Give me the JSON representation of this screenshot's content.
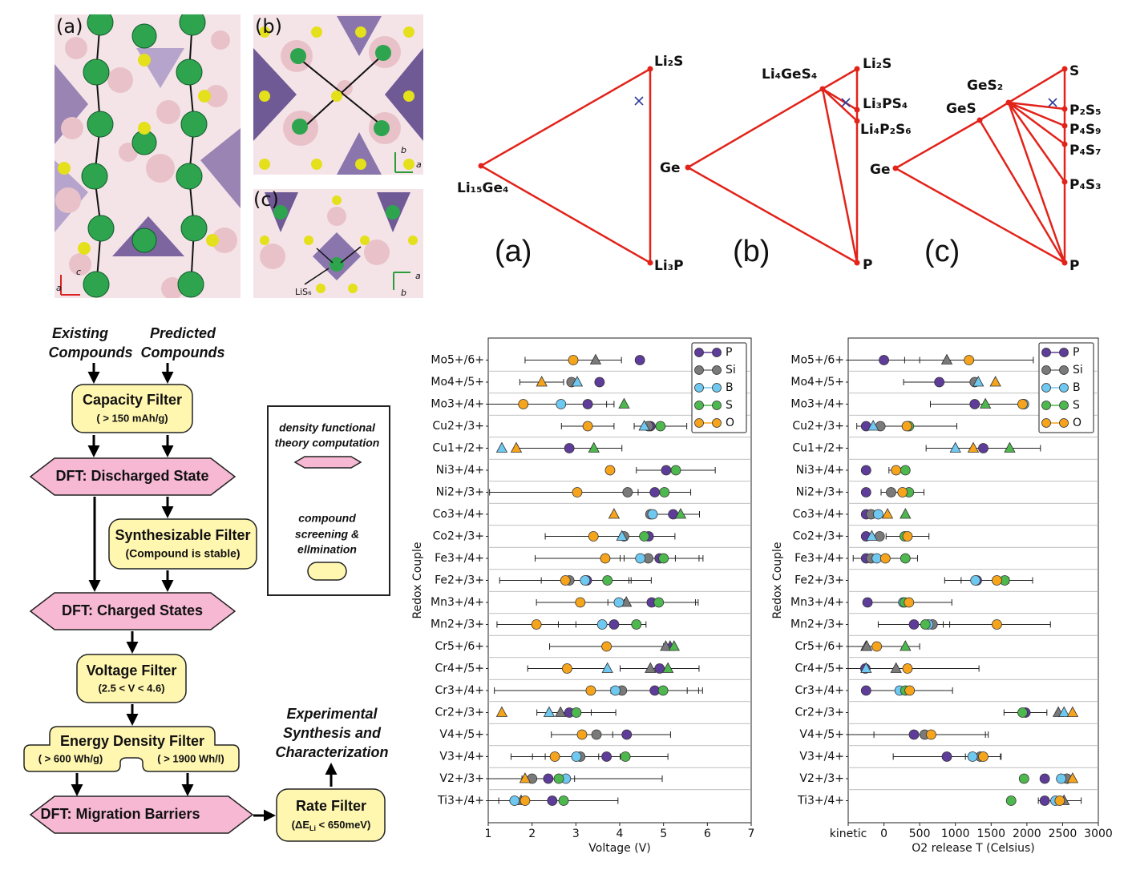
{
  "structures": {
    "panels": [
      "(a)",
      "(b)",
      "(c)"
    ],
    "label": "LiS₆",
    "axes": [
      [
        "c",
        "a"
      ],
      [
        "b",
        "a"
      ],
      [
        "a",
        "b"
      ]
    ]
  },
  "phase_diagrams": [
    {
      "label": "(a)",
      "phases": [
        "Li₂S",
        "Li₁₅Ge₄",
        "Li₃P"
      ]
    },
    {
      "label": "(b)",
      "phases": [
        "Li₄GeS₄",
        "Li₂S",
        "Li₃PS₄",
        "Li₄P₂S₆",
        "Ge",
        "P"
      ]
    },
    {
      "label": "(c)",
      "phases": [
        "S",
        "GeS₂",
        "GeS",
        "P₂S₅",
        "P₄S₉",
        "P₄S₇",
        "Ge",
        "P₄S₃",
        "P"
      ]
    }
  ],
  "flowchart": {
    "inputs": [
      [
        "Existing",
        "Compounds"
      ],
      [
        "Predicted",
        "Compounds"
      ]
    ],
    "capacity_filter": {
      "title": "Capacity Filter",
      "criterion": "( > 150 mAh/g)"
    },
    "dft_discharged": "DFT: Discharged State",
    "synthesizable_filter": {
      "title": "Synthesizable Filter",
      "criterion": "(Compound is stable)"
    },
    "dft_charged": "DFT: Charged States",
    "voltage_filter": {
      "title": "Voltage Filter",
      "criterion": "(2.5 < V < 4.6)"
    },
    "energy_density_filter": {
      "title": "Energy Density Filter",
      "criteria": [
        "( > 600 Wh/g)",
        "( > 1900 Wh/l)"
      ]
    },
    "dft_migration": "DFT: Migration Barriers",
    "rate_filter": {
      "title": "Rate Filter",
      "criterion": [
        "(ΔE",
        "Li",
        " < 650meV)"
      ]
    },
    "output": [
      "Experimental",
      "Synthesis and",
      "Characterization"
    ],
    "legend": {
      "dft": [
        "density functional",
        "theory computation"
      ],
      "screening": [
        "compound",
        "screening &",
        "ellmination"
      ]
    }
  },
  "chart_data": [
    {
      "type": "scatter",
      "xlabel": "Voltage (V)",
      "ylabel": "Redox Couple",
      "categories": [
        "Mo5+/6+",
        "Mo4+/5+",
        "Mo3+/4+",
        "Cu2+/3+",
        "Cu1+/2+",
        "Ni3+/4+",
        "Ni2+/3+",
        "Co3+/4+",
        "Co2+/3+",
        "Fe3+/4+",
        "Fe2+/3+",
        "Mn3+/4+",
        "Mn2+/3+",
        "Cr5+/6+",
        "Cr4+/5+",
        "Cr3+/4+",
        "Cr2+/3+",
        "V4+/5+",
        "V3+/4+",
        "V2+/3+",
        "Ti3+/4+"
      ],
      "xlim": [
        1,
        7
      ],
      "xticks": [
        1,
        2,
        3,
        4,
        5,
        6,
        7
      ],
      "grid": true,
      "legend": "upper right",
      "series": [
        {
          "name": "P",
          "color": "#5e3c99",
          "values": [
            4.46,
            3.54,
            3.27,
            4.7,
            2.85,
            5.06,
            4.8,
            5.22,
            4.66,
            4.91,
            3.25,
            4.73,
            3.87,
            5.15,
            4.91,
            4.8,
            2.85,
            4.16,
            3.7,
            2.37,
            2.46
          ],
          "markers": [
            "o",
            "o",
            "o",
            "o",
            "o",
            "o",
            "o",
            "o",
            "o",
            "o",
            "o",
            "o",
            "o",
            "^",
            "o",
            "o",
            "o",
            "o",
            "o",
            "o",
            "o"
          ],
          "errors": [
            null,
            null,
            0.6,
            null,
            1.2,
            null,
            null,
            0.6,
            0.6,
            0.9,
            null,
            1.0,
            null,
            null,
            0.9,
            1.0,
            0.5,
            1.0,
            1.4,
            0.6,
            1.5
          ]
        },
        {
          "name": "Si",
          "color": "#7a7a7a",
          "values": [
            3.45,
            2.9,
            null,
            4.65,
            null,
            null,
            4.18,
            4.7,
            4.1,
            4.65,
            2.85,
            4.15,
            null,
            5.05,
            4.7,
            4.05,
            2.65,
            3.47,
            3.1,
            2.0,
            1.75
          ],
          "markers": [
            "^",
            "o",
            null,
            "o",
            null,
            null,
            "o",
            "o",
            "o",
            "o",
            "o",
            "^",
            null,
            "^",
            "^",
            "o",
            "^",
            "o",
            "o",
            "o",
            "^"
          ]
        },
        {
          "name": "B",
          "color": "#6ec8f0",
          "values": [
            null,
            3.03,
            2.66,
            4.56,
            1.31,
            null,
            null,
            4.75,
            4.05,
            4.47,
            3.21,
            3.98,
            3.6,
            null,
            3.72,
            3.9,
            2.39,
            null,
            3.01,
            2.77,
            1.6
          ],
          "markers": [
            null,
            "^",
            "o",
            "^",
            "^",
            null,
            null,
            "o",
            "^",
            "o",
            "o",
            "o",
            "o",
            null,
            "^",
            "o",
            "^",
            null,
            "o",
            "o",
            "o"
          ],
          "errors": [
            null,
            null,
            null,
            null,
            null,
            null,
            null,
            null,
            null,
            null,
            1.0,
            null,
            1.0,
            null,
            null,
            null,
            null,
            null,
            1.0,
            2.2,
            null
          ]
        },
        {
          "name": "S",
          "color": "#4db84e",
          "values": [
            null,
            null,
            4.1,
            4.93,
            3.41,
            5.28,
            5.02,
            5.39,
            4.56,
            5.0,
            3.72,
            4.89,
            4.38,
            5.24,
            5.1,
            4.99,
            3.01,
            null,
            4.13,
            2.61,
            2.72
          ],
          "markers": [
            null,
            null,
            "^",
            "o",
            "^",
            "o",
            "o",
            "^",
            "o",
            "o",
            "o",
            "o",
            "o",
            "^",
            "^",
            "o",
            "o",
            null,
            "o",
            "o",
            "o"
          ],
          "errors": [
            null,
            null,
            null,
            0.6,
            null,
            0.9,
            0.6,
            null,
            null,
            0.9,
            1.0,
            0.9,
            null,
            null,
            null,
            0.9,
            0.9,
            null,
            null,
            null,
            null
          ]
        },
        {
          "name": "O",
          "color": "#f7a41d",
          "values": [
            2.94,
            2.22,
            1.8,
            3.27,
            1.64,
            3.78,
            3.03,
            3.87,
            3.4,
            3.67,
            2.76,
            3.1,
            2.1,
            3.7,
            2.8,
            3.34,
            1.31,
            3.14,
            2.52,
            1.84,
            1.84
          ],
          "markers": [
            "o",
            "^",
            "o",
            "o",
            "^",
            "o",
            "o",
            "^",
            "o",
            "o",
            "o",
            "o",
            "o",
            "o",
            "o",
            "o",
            "^",
            "o",
            "o",
            "^",
            "o"
          ],
          "errors": [
            1.1,
            0.5,
            1.9,
            0.6,
            null,
            null,
            2.0,
            null,
            1.1,
            1.6,
            1.5,
            1.0,
            0.9,
            1.3,
            0.9,
            2.2,
            null,
            0.7,
            1.0,
            null,
            0.6
          ]
        }
      ]
    },
    {
      "type": "scatter",
      "xlabel": "O2 release T (Celsius)",
      "ylabel": "Redox Couple",
      "categories": [
        "Mo5+/6+",
        "Mo4+/5+",
        "Mo3+/4+",
        "Cu2+/3+",
        "Cu1+/2+",
        "Ni3+/4+",
        "Ni2+/3+",
        "Co3+/4+",
        "Co2+/3+",
        "Fe3+/4+",
        "Fe2+/3+",
        "Mn3+/4+",
        "Mn2+/3+",
        "Cr5+/6+",
        "Cr4+/5+",
        "Cr3+/4+",
        "Cr2+/3+",
        "V4+/5+",
        "V3+/4+",
        "V2+/3+",
        "Ti3+/4+"
      ],
      "xlim": [
        -500,
        3000
      ],
      "xticks": [
        {
          "value": -500,
          "label": "kinetic"
        },
        0,
        500,
        1000,
        1500,
        2000,
        2500,
        3000
      ],
      "grid": true,
      "legend": "upper right",
      "series": [
        {
          "name": "P",
          "color": "#5e3c99",
          "values": [
            0,
            775,
            1270,
            -250,
            1390,
            -250,
            -250,
            -250,
            -250,
            -250,
            1300,
            -230,
            420,
            -250,
            -260,
            -250,
            1980,
            420,
            880,
            2250,
            2250
          ],
          "markers": [
            "o",
            "o",
            "o",
            "o",
            "o",
            "o",
            "o",
            "o",
            "o",
            "o",
            "o",
            "o",
            "o",
            "^",
            "o",
            "o",
            "o",
            "o",
            "o",
            "o",
            "o"
          ],
          "errors": [
            500,
            500,
            620,
            null,
            800,
            null,
            null,
            null,
            null,
            null,
            450,
            null,
            500,
            null,
            null,
            null,
            300,
            1000,
            750,
            null,
            null
          ]
        },
        {
          "name": "Si",
          "color": "#7a7a7a",
          "values": [
            880,
            1270,
            1950,
            -50,
            null,
            null,
            100,
            -180,
            -60,
            -180,
            null,
            null,
            680,
            -240,
            170,
            null,
            2440,
            570,
            1350,
            2560,
            2520
          ],
          "markers": [
            "^",
            "o",
            "o",
            "o",
            null,
            null,
            "o",
            "o",
            "o",
            "o",
            null,
            null,
            "o",
            "^",
            "^",
            null,
            "^",
            "o",
            "o",
            "o",
            "^"
          ]
        },
        {
          "name": "B",
          "color": "#6ec8f0",
          "values": [
            null,
            1320,
            1960,
            -150,
            1000,
            null,
            null,
            -80,
            -170,
            -100,
            1280,
            270,
            620,
            null,
            -250,
            220,
            2520,
            null,
            1240,
            2480,
            2400
          ],
          "markers": [
            null,
            "^",
            "o",
            "^",
            "^",
            null,
            null,
            "o",
            "^",
            "o",
            "o",
            "o",
            "o",
            null,
            "^",
            "o",
            "^",
            null,
            "o",
            "o",
            "o"
          ]
        },
        {
          "name": "S",
          "color": "#4db84e",
          "values": [
            null,
            null,
            1420,
            350,
            1760,
            300,
            350,
            300,
            290,
            300,
            1690,
            290,
            580,
            300,
            null,
            300,
            1940,
            null,
            null,
            1960,
            1780
          ],
          "markers": [
            null,
            null,
            "^",
            "o",
            "^",
            "o",
            "o",
            "^",
            "o",
            "o",
            "o",
            "o",
            "o",
            "^",
            null,
            "o",
            "o",
            null,
            null,
            "o",
            "o"
          ]
        },
        {
          "name": "O",
          "color": "#f7a41d",
          "values": [
            1190,
            1560,
            1940,
            320,
            1250,
            170,
            260,
            50,
            330,
            20,
            1580,
            350,
            1580,
            -100,
            330,
            360,
            2640,
            660,
            1390,
            2640,
            2460
          ],
          "markers": [
            "o",
            "^",
            "o",
            "o",
            "^",
            "o",
            "o",
            "^",
            "o",
            "o",
            "o",
            "o",
            "o",
            "o",
            "o",
            "o",
            "^",
            "o",
            "o",
            "^",
            "o"
          ],
          "errors": [
            900,
            null,
            null,
            700,
            null,
            100,
            300,
            null,
            300,
            450,
            500,
            600,
            750,
            600,
            1000,
            600,
            null,
            800,
            250,
            null,
            300
          ]
        }
      ]
    }
  ]
}
